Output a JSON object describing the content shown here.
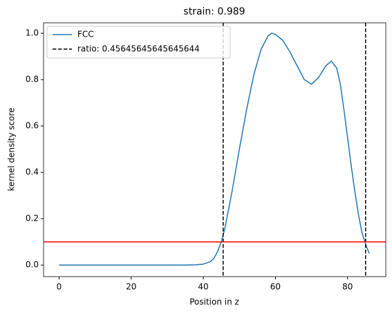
{
  "chart_data": {
    "type": "line",
    "title": "strain: 0.989",
    "xlabel": "Position in z",
    "ylabel": "kernel density score",
    "x": [
      0,
      10,
      20,
      30,
      35,
      38,
      40,
      42,
      43,
      44,
      45,
      46,
      47,
      48,
      50,
      52,
      54,
      56,
      58,
      59,
      60,
      62,
      64,
      66,
      68,
      70,
      72,
      74,
      75.5,
      77,
      78,
      79,
      80,
      81,
      82,
      83,
      84,
      85,
      86
    ],
    "series": [
      {
        "name": "FCC",
        "color": "#1f77b4",
        "values": [
          0,
          0,
          0,
          0,
          0,
          0.001,
          0.004,
          0.015,
          0.03,
          0.06,
          0.1,
          0.16,
          0.24,
          0.32,
          0.5,
          0.67,
          0.82,
          0.93,
          0.99,
          1.0,
          0.995,
          0.97,
          0.92,
          0.86,
          0.8,
          0.78,
          0.81,
          0.86,
          0.88,
          0.85,
          0.78,
          0.67,
          0.55,
          0.43,
          0.32,
          0.22,
          0.14,
          0.09,
          0.05
        ]
      }
    ],
    "vlines": {
      "name": "ratio: 0.45645645645645644",
      "color": "#000000",
      "values": [
        45.5,
        85.0
      ]
    },
    "hline": {
      "color": "#ff0000",
      "value": 0.1
    },
    "xlim": [
      -4.3,
      90.6
    ],
    "ylim": [
      -0.05,
      1.045
    ],
    "xticks": [
      0,
      20,
      40,
      60,
      80
    ],
    "yticks": [
      {
        "value": 0,
        "label": "0.0"
      },
      0.2,
      0.4,
      0.6,
      0.8,
      {
        "value": 1,
        "label": "1.0"
      }
    ],
    "legend": "upper left"
  }
}
